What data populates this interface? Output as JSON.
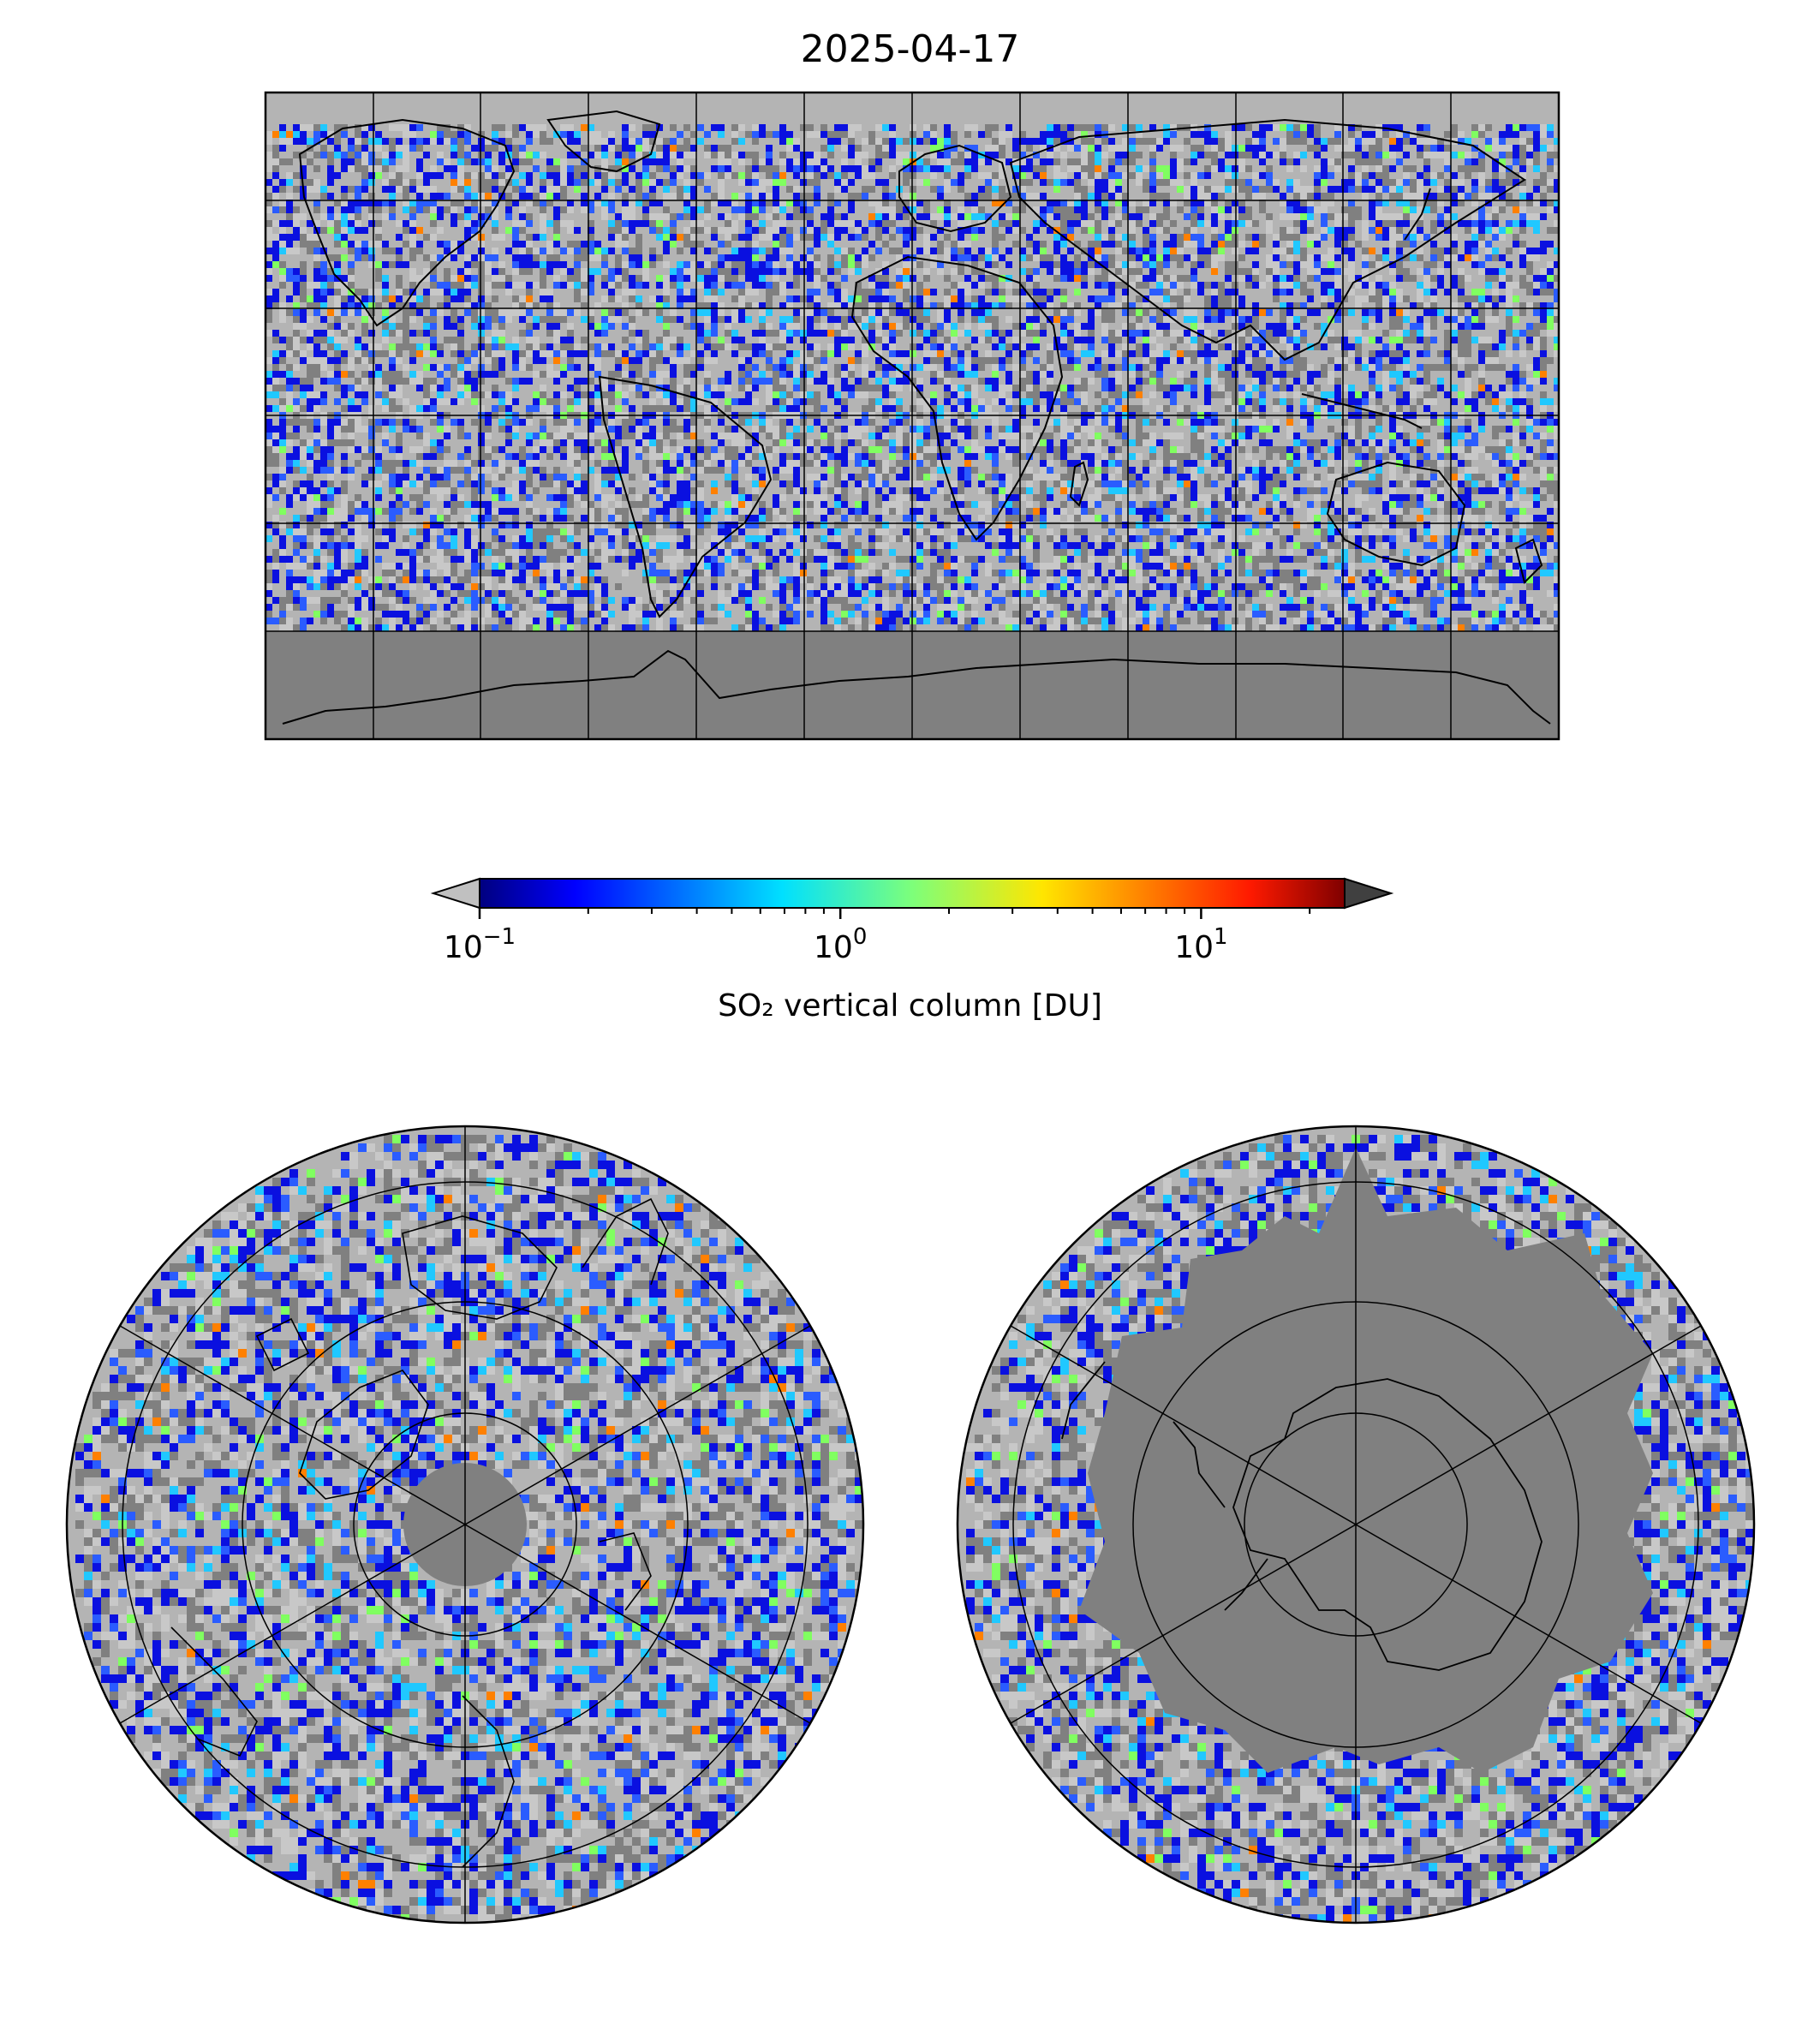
{
  "title": "2025-04-17",
  "colorbar": {
    "label": "SO₂ vertical column [DU]",
    "scale": "log",
    "range": [
      0.1,
      25
    ],
    "colormap": "jet",
    "extend": "both",
    "under_color": "#c0c0c0",
    "over_color": "#404040",
    "ticks": [
      {
        "value": 0.1,
        "base": "10",
        "exp": "−1"
      },
      {
        "value": 1,
        "base": "10",
        "exp": "0"
      },
      {
        "value": 10,
        "base": "10",
        "exp": "1"
      }
    ]
  },
  "maps": [
    {
      "projection": "plate-carree",
      "region": "global"
    },
    {
      "projection": "north-polar-stereographic",
      "region": "arctic"
    },
    {
      "projection": "south-polar-stereographic",
      "region": "antarctic"
    }
  ],
  "colors": {
    "no_data": "#808080",
    "below_range": "#c0c0c0",
    "coastline": "#000000"
  }
}
